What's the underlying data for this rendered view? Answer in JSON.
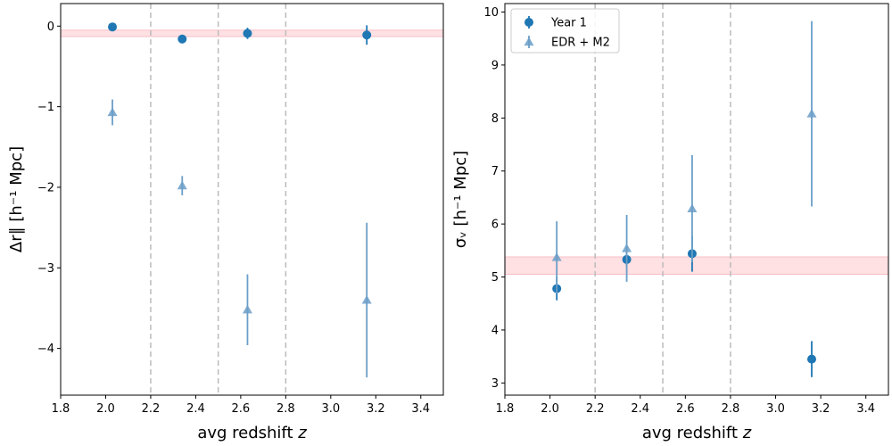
{
  "colors": {
    "year1": "#1f77b4",
    "edr": "#6b9ec8",
    "band": "#ffe0e3",
    "band_edge": "#f5b5bd",
    "vline": "#bbbbbb"
  },
  "chart_data": [
    {
      "type": "scatter",
      "xlabel_text": "avg redshift ",
      "xlabel_var": "z",
      "ylabel_text": "Δr∥ [h⁻¹ Mpc]",
      "xlim": [
        1.8,
        3.5
      ],
      "ylim": [
        -4.58,
        0.28
      ],
      "xticks": [
        1.8,
        2.0,
        2.2,
        2.4,
        2.6,
        2.8,
        3.0,
        3.2,
        3.4
      ],
      "xtick_labels": [
        "1.8",
        "2.0",
        "2.2",
        "2.4",
        "2.6",
        "2.8",
        "3.0",
        "3.2",
        "3.4"
      ],
      "yticks": [
        0,
        -1,
        -2,
        -3,
        -4
      ],
      "ytick_labels": [
        "0",
        "−1",
        "−2",
        "−3",
        "−4"
      ],
      "vlines": [
        2.2,
        2.5,
        2.8
      ],
      "band": [
        -0.13,
        -0.05
      ],
      "series": [
        {
          "name": "Year 1",
          "marker": "circle",
          "x": [
            2.03,
            2.34,
            2.63,
            3.16
          ],
          "y": [
            -0.01,
            -0.16,
            -0.09,
            -0.11
          ],
          "yerr": [
            0.05,
            0.04,
            0.07,
            0.12
          ]
        },
        {
          "name": "EDR + M2",
          "marker": "triangle",
          "x": [
            2.03,
            2.34,
            2.63,
            3.16
          ],
          "y": [
            -1.07,
            -1.98,
            -3.52,
            -3.4
          ],
          "yerr": [
            0.16,
            0.12,
            0.44,
            0.96
          ]
        }
      ]
    },
    {
      "type": "scatter",
      "xlabel_text": "avg redshift ",
      "xlabel_var": "z",
      "ylabel_text": "σᵥ [h⁻¹ Mpc]",
      "xlim": [
        1.8,
        3.5
      ],
      "ylim": [
        2.77,
        10.16
      ],
      "xticks": [
        1.8,
        2.0,
        2.2,
        2.4,
        2.6,
        2.8,
        3.0,
        3.2,
        3.4
      ],
      "xtick_labels": [
        "1.8",
        "2.0",
        "2.2",
        "2.4",
        "2.6",
        "2.8",
        "3.0",
        "3.2",
        "3.4"
      ],
      "yticks": [
        3,
        4,
        5,
        6,
        7,
        8,
        9,
        10
      ],
      "ytick_labels": [
        "3",
        "4",
        "5",
        "6",
        "7",
        "8",
        "9",
        "10"
      ],
      "vlines": [
        2.2,
        2.5,
        2.8
      ],
      "band": [
        5.05,
        5.38
      ],
      "legend": {
        "placement": "top-left",
        "entries": [
          "Year 1",
          "EDR + M2"
        ]
      },
      "series": [
        {
          "name": "Year 1",
          "marker": "circle",
          "x": [
            2.03,
            2.34,
            2.63,
            3.16
          ],
          "y": [
            4.78,
            5.33,
            5.44,
            3.45
          ],
          "yerr": [
            0.22,
            0.14,
            0.34,
            0.34
          ]
        },
        {
          "name": "EDR + M2",
          "marker": "triangle",
          "x": [
            2.03,
            2.34,
            2.63,
            3.16
          ],
          "y": [
            5.37,
            5.54,
            6.29,
            8.08
          ],
          "yerr": [
            0.68,
            0.63,
            1.01,
            1.75
          ]
        }
      ]
    }
  ]
}
